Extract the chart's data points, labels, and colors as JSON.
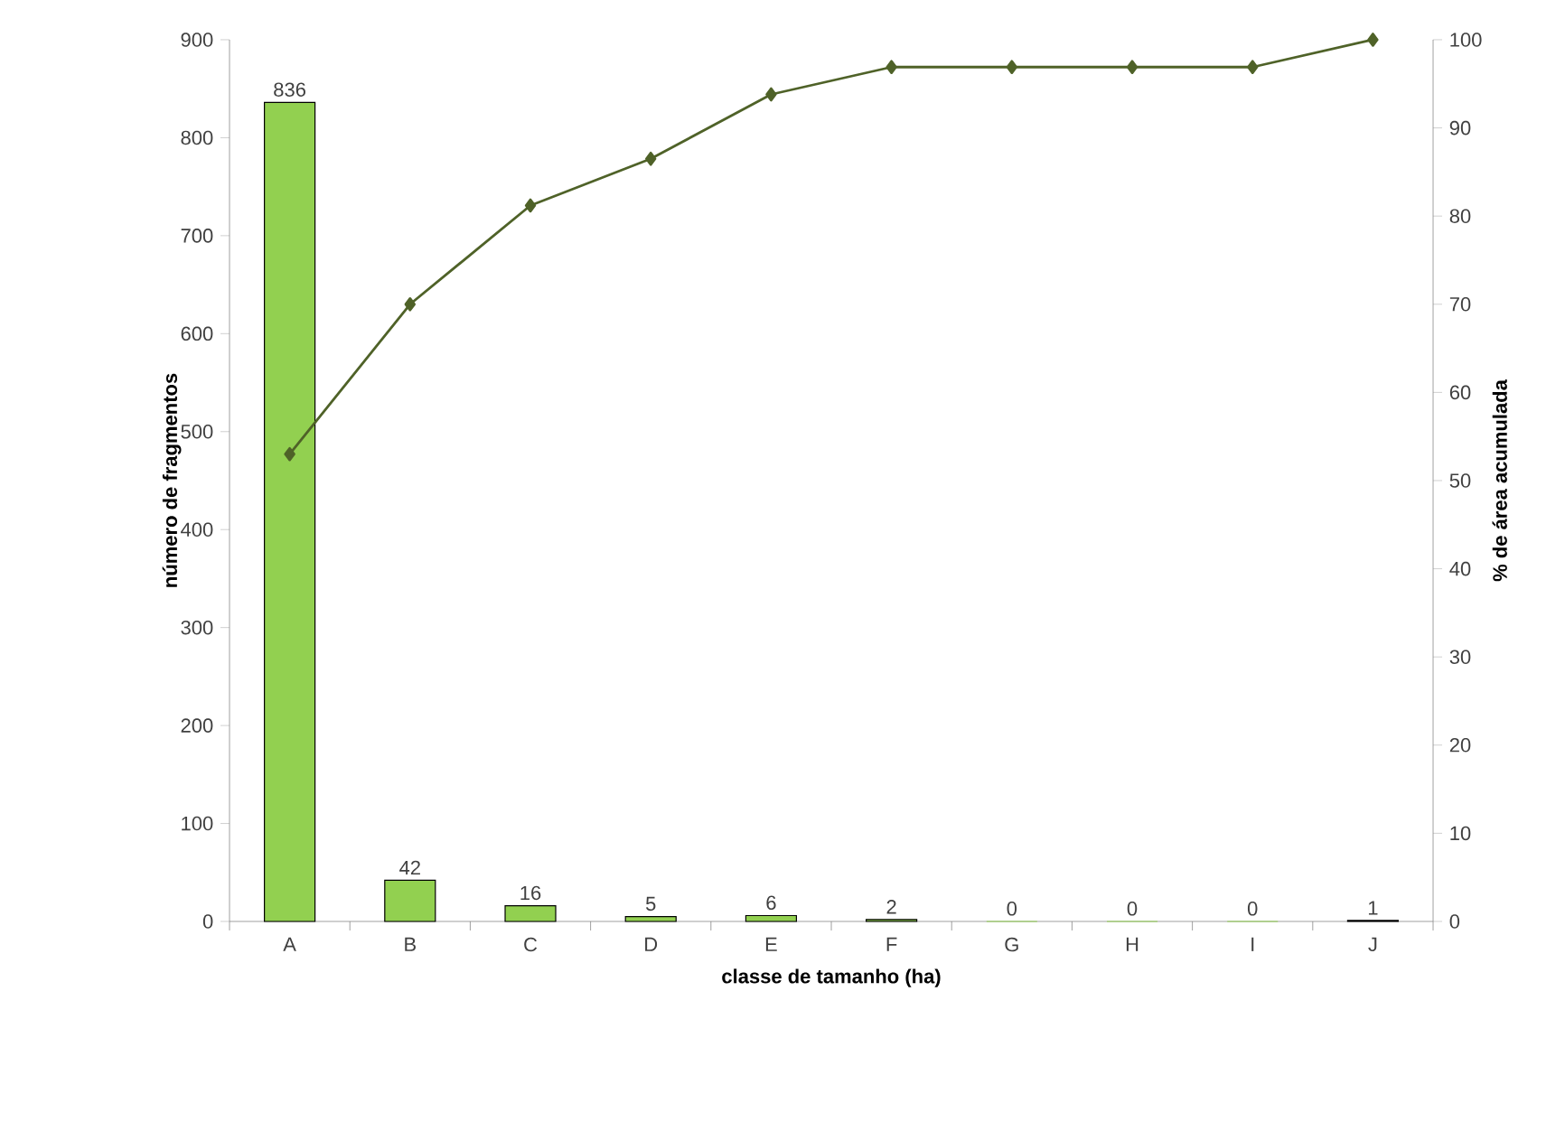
{
  "chart_data": {
    "type": "bar",
    "xlabel": "classe de tamanho (ha)",
    "ylabel": "número de fragmentos",
    "y2label": "% de área acumulada",
    "categories": [
      "A",
      "B",
      "C",
      "D",
      "E",
      "F",
      "G",
      "H",
      "I",
      "J"
    ],
    "series": [
      {
        "color": "#92d050",
        "values": [
          836,
          42,
          16,
          5,
          6,
          2,
          0,
          0,
          0,
          1
        ],
        "value_labels": [
          "836",
          "42",
          "16",
          "5",
          "6",
          "2",
          "0",
          "0",
          "0",
          "1"
        ]
      },
      {
        "type": "line",
        "axis": "y2",
        "color": "#4f6228",
        "values": [
          53,
          70,
          81.2,
          86.5,
          93.8,
          96.9,
          96.9,
          96.9,
          96.9,
          100
        ]
      }
    ],
    "ylim": [
      0,
      900
    ],
    "yticks": [
      0,
      100,
      200,
      300,
      400,
      500,
      600,
      700,
      800,
      900
    ],
    "y2lim": [
      0,
      100
    ],
    "y2ticks": [
      0,
      10,
      20,
      30,
      40,
      50,
      60,
      70,
      80,
      90,
      100
    ],
    "marker": "diamond"
  }
}
